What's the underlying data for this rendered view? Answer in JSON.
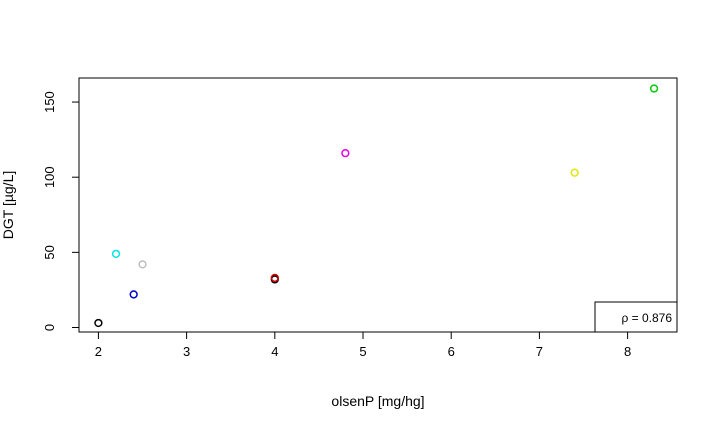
{
  "chart_data": {
    "type": "scatter",
    "title": "",
    "xlabel": "olsenP [mg/hg]",
    "ylabel": "DGT [µg/L]",
    "xlim": [
      1.78,
      8.56
    ],
    "ylim": [
      -3,
      166
    ],
    "xticks": [
      2,
      3,
      4,
      5,
      6,
      7,
      8
    ],
    "yticks": [
      0,
      50,
      100,
      150
    ],
    "grid": false,
    "points": [
      {
        "x": 2.0,
        "y": 3,
        "color": "#000000"
      },
      {
        "x": 2.2,
        "y": 49,
        "color": "#00e5e5"
      },
      {
        "x": 2.4,
        "y": 22,
        "color": "#0000cc"
      },
      {
        "x": 2.5,
        "y": 42,
        "color": "#bebebe"
      },
      {
        "x": 4.0,
        "y": 32,
        "color": "#000000"
      },
      {
        "x": 4.0,
        "y": 33,
        "color": "#cc0000"
      },
      {
        "x": 4.8,
        "y": 116,
        "color": "#e600e6"
      },
      {
        "x": 7.4,
        "y": 103,
        "color": "#e6e600"
      },
      {
        "x": 8.3,
        "y": 159,
        "color": "#00cc00"
      }
    ],
    "annotation": {
      "text": "ρ = 0.876",
      "placement": "bottom-right"
    }
  }
}
